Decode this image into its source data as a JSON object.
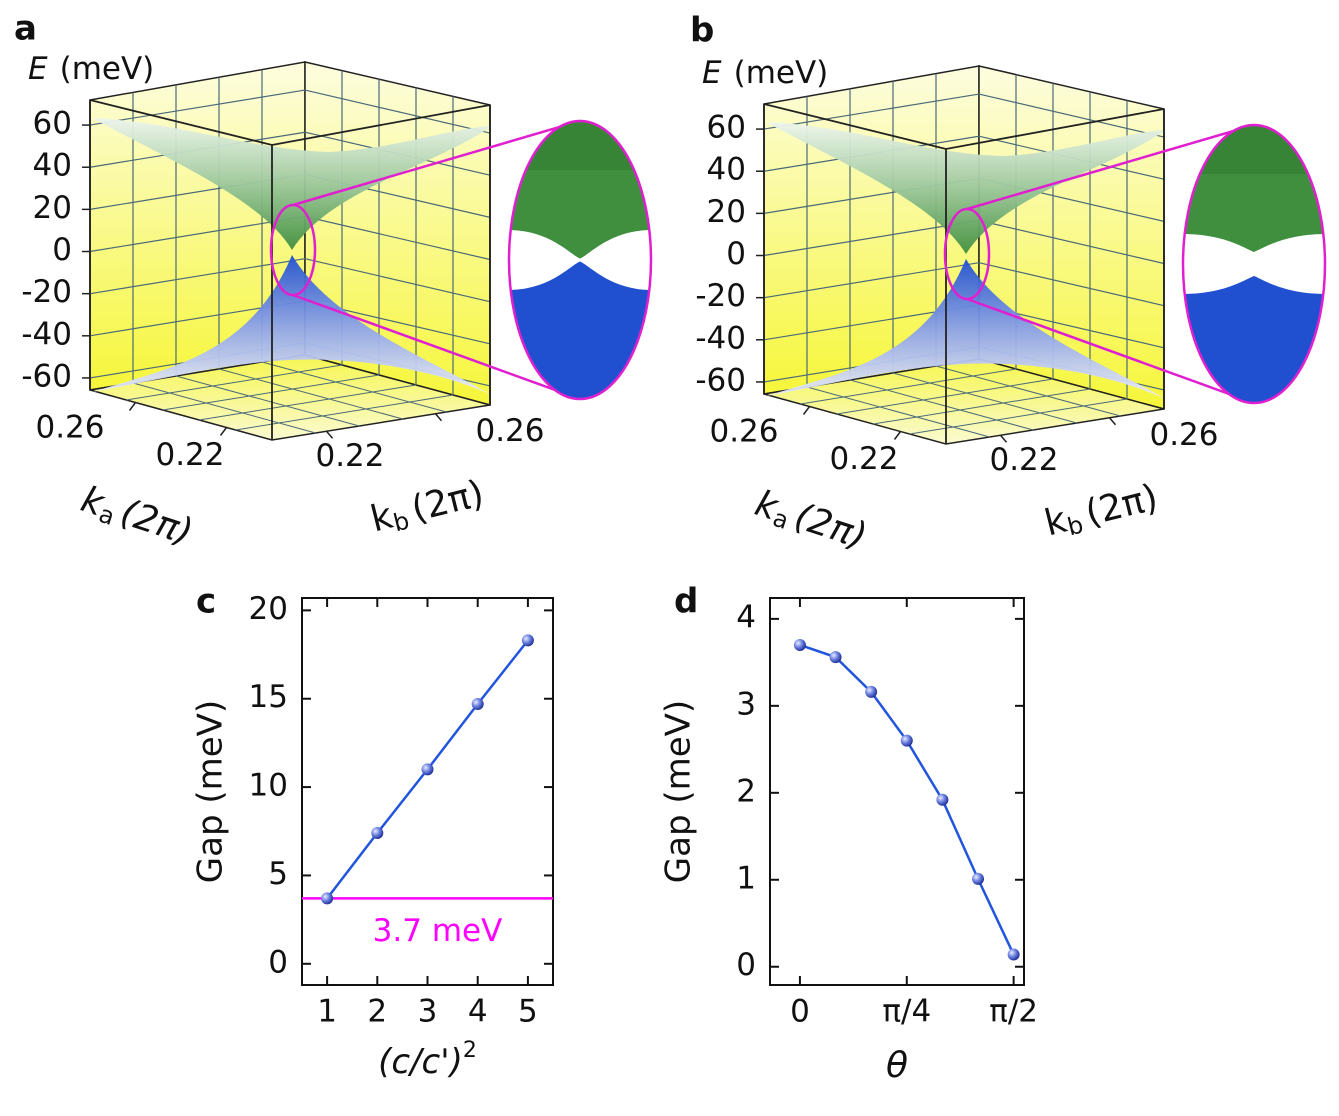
{
  "chart_data": [
    {
      "panel": "a",
      "type": "surface",
      "zlabel": {
        "symbol": "E",
        "unit": "(meV)"
      },
      "zlim": [
        -66,
        70
      ],
      "zticks": [
        60,
        40,
        20,
        0,
        -20,
        -40,
        -60
      ],
      "xlabel": {
        "symbol": "k",
        "subscript": "a",
        "unit": "(2π)"
      },
      "xlim": [
        0.2,
        0.28
      ],
      "xticks": [
        0.26,
        0.22
      ],
      "ylabel": {
        "symbol": "k",
        "subscript": "b",
        "unit": "(2π)"
      },
      "ylim": [
        0.2,
        0.28
      ],
      "yticks": [
        0.22,
        0.26
      ],
      "colors": {
        "upper": "#3f8f3f",
        "lower": "#2050d0",
        "zoom": "#e020d0"
      }
    },
    {
      "panel": "b",
      "type": "surface",
      "zlabel": {
        "symbol": "E",
        "unit": "(meV)"
      },
      "zlim": [
        -66,
        70
      ],
      "zticks": [
        60,
        40,
        20,
        0,
        -20,
        -40,
        -60
      ],
      "xlabel": {
        "symbol": "k",
        "subscript": "a",
        "unit": "(2π)"
      },
      "xlim": [
        0.2,
        0.28
      ],
      "xticks": [
        0.26,
        0.22
      ],
      "ylabel": {
        "symbol": "k",
        "subscript": "b",
        "unit": "(2π)"
      },
      "ylim": [
        0.2,
        0.28
      ],
      "yticks": [
        0.22,
        0.26
      ],
      "colors": {
        "upper": "#3f8f3f",
        "lower": "#2050d0",
        "zoom": "#e020d0"
      }
    },
    {
      "panel": "c",
      "type": "line",
      "xlabel": {
        "text": "(c/c')",
        "superscript": "2"
      },
      "ylabel": "Gap (meV)",
      "x": [
        1,
        2,
        3,
        4,
        5
      ],
      "values": [
        3.7,
        7.4,
        11.0,
        14.7,
        18.3
      ],
      "color": "#2255dd",
      "xlim": [
        0.5,
        5.5
      ],
      "xticks": [
        1,
        2,
        3,
        4,
        5
      ],
      "ylim": [
        -1.2,
        20.7
      ],
      "yticks": [
        0,
        5,
        10,
        15,
        20
      ],
      "hline": {
        "value": 3.7,
        "label": "3.7 meV",
        "color": "#ff00ff"
      }
    },
    {
      "panel": "d",
      "type": "line",
      "xlabel": "θ",
      "ylabel": "Gap (meV)",
      "x": [
        0,
        0.2618,
        0.5236,
        0.7854,
        1.0472,
        1.309,
        1.5708
      ],
      "values": [
        3.7,
        3.56,
        3.16,
        2.6,
        1.92,
        1.01,
        0.14
      ],
      "color": "#2255dd",
      "xlim": [
        -0.22,
        1.647
      ],
      "xticks": [
        0,
        {
          "value": 0.7854,
          "label": "π/4"
        },
        {
          "value": 1.5708,
          "label": "π/2"
        }
      ],
      "ylim": [
        -0.21,
        4.24
      ],
      "yticks": [
        0,
        1,
        2,
        3,
        4
      ]
    }
  ]
}
